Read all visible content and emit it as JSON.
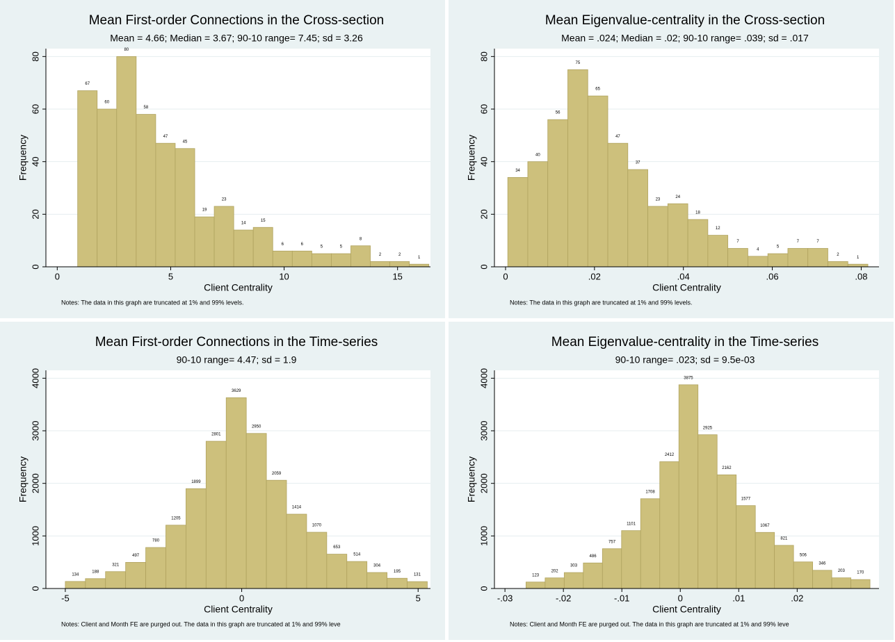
{
  "chart_data": [
    {
      "type": "histogram",
      "title": "Mean First-order Connections in the Cross-section",
      "subtitle": "Mean = 4.66;   Median = 3.67;   90-10 range= 7.45;   sd =  3.26",
      "x_label": "Client Centrality",
      "y_label": "Frequency",
      "note": "Notes: The data in this graph are truncated at 1% and 99% levels.",
      "bins": [
        0.9,
        1.76,
        2.62,
        3.48,
        4.34,
        5.2,
        6.06,
        6.92,
        7.78,
        8.64,
        9.5,
        10.36,
        11.22,
        12.08,
        12.94,
        13.8,
        14.66,
        15.52,
        16.38
      ],
      "values": [
        67,
        60,
        80,
        58,
        47,
        45,
        19,
        23,
        14,
        15,
        6,
        6,
        5,
        5,
        8,
        2,
        2,
        1
      ],
      "color": "#cdc07c",
      "xlim": [
        -0.5,
        16.45
      ],
      "xticks": [
        0,
        5,
        10,
        15
      ],
      "ylim": [
        0,
        83
      ],
      "yticks": [
        0,
        20,
        40,
        60,
        80
      ],
      "grid": true
    },
    {
      "type": "histogram",
      "title": "Mean Eigenvalue-centrality in the Cross-section",
      "subtitle": "Mean = .024;   Median =  .02;   90-10 range= .039;   sd =  .017",
      "x_label": "Client Centrality",
      "y_label": "Frequency",
      "note": "Notes: The data in this graph are truncated at 1% and 99% levels.",
      "bins": [
        0.0005,
        0.005,
        0.0095,
        0.014,
        0.0185,
        0.023,
        0.0275,
        0.032,
        0.0365,
        0.041,
        0.0455,
        0.05,
        0.0545,
        0.059,
        0.0635,
        0.068,
        0.0725,
        0.077,
        0.0815
      ],
      "values": [
        34,
        40,
        56,
        75,
        65,
        47,
        37,
        23,
        24,
        18,
        12,
        7,
        4,
        5,
        7,
        7,
        2,
        1
      ],
      "color": "#cdc07c",
      "xlim": [
        -0.0025,
        0.084
      ],
      "xticks": [
        0,
        {
          "value": 0.02,
          "label": ".02"
        },
        {
          "value": 0.04,
          "label": ".04"
        },
        {
          "value": 0.06,
          "label": ".06"
        },
        {
          "value": 0.08,
          "label": ".08"
        }
      ],
      "ylim": [
        0,
        83
      ],
      "yticks": [
        0,
        20,
        40,
        60,
        80
      ],
      "grid": true
    },
    {
      "type": "histogram",
      "title": "Mean First-order Connections in the Time-series",
      "subtitle": "90-10 range= 4.47;   sd =   1.9",
      "x_label": "Client Centrality",
      "y_label": "Frequency",
      "note": "Notes: Client and Month FE are purged out. The data in this graph are truncated at 1% and 99% leve",
      "bins": [
        -5,
        -4.43,
        -3.86,
        -3.29,
        -2.72,
        -2.15,
        -1.58,
        -1.01,
        -0.44,
        0.13,
        0.7,
        1.27,
        1.84,
        2.41,
        2.98,
        3.55,
        4.12,
        4.69,
        5.26
      ],
      "values": [
        134,
        188,
        321,
        497,
        780,
        1205,
        1899,
        2801,
        3629,
        2950,
        2059,
        1414,
        1070,
        653,
        514,
        304,
        195,
        131
      ],
      "color": "#cdc07c",
      "xlim": [
        -5.55,
        5.35
      ],
      "xticks": [
        -5,
        0,
        5
      ],
      "ylim": [
        0,
        4150
      ],
      "yticks": [
        0,
        1000,
        2000,
        3000,
        4000
      ],
      "grid": true
    },
    {
      "type": "histogram",
      "title": "Mean Eigenvalue-centrality in the Time-series",
      "subtitle": "90-10 range= .023;   sd = 9.5e-03",
      "x_label": "Client Centrality",
      "y_label": "Frequency",
      "note": "Notes: Client and Month FE are purged out. The data in this graph are truncated at 1% and 99% leve",
      "bins": [
        -0.0264,
        -0.02313,
        -0.01986,
        -0.01659,
        -0.01332,
        -0.01005,
        -0.00678,
        -0.00351,
        -0.00024,
        0.00303,
        0.0063,
        0.00957,
        0.01284,
        0.01611,
        0.01938,
        0.02265,
        0.02592,
        0.02919,
        0.03246
      ],
      "values": [
        123,
        202,
        303,
        486,
        757,
        1101,
        1708,
        2412,
        3875,
        2925,
        2162,
        1577,
        1067,
        821,
        506,
        346,
        203,
        170
      ],
      "color": "#cdc07c",
      "xlim": [
        -0.0318,
        0.034
      ],
      "xticks": [
        {
          "value": -0.03,
          "label": "-.03"
        },
        {
          "value": -0.02,
          "label": "-.02"
        },
        {
          "value": -0.01,
          "label": "-.01"
        },
        0,
        {
          "value": 0.01,
          "label": ".01"
        },
        {
          "value": 0.02,
          "label": ".02"
        }
      ],
      "ylim": [
        0,
        4150
      ],
      "yticks": [
        0,
        1000,
        2000,
        3000,
        4000
      ],
      "grid": true
    }
  ]
}
